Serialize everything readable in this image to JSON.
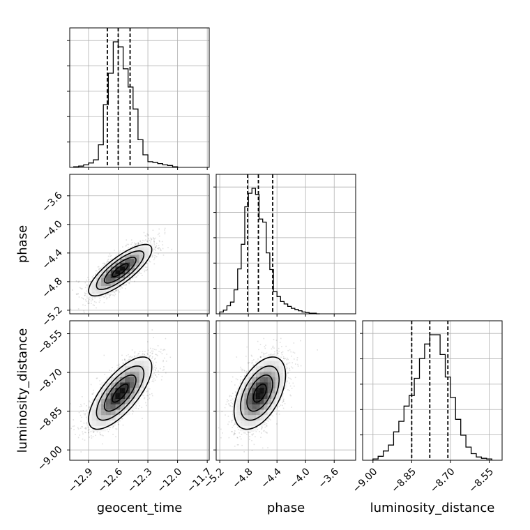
{
  "chart_data": {
    "type": "corner",
    "parameters": [
      "geocent_time",
      "phase",
      "luminosity_distance"
    ],
    "axis_titles": {
      "x": [
        "geocent_time",
        "phase",
        "luminosity_distance"
      ],
      "y": [
        "",
        "phase",
        "luminosity_distance"
      ]
    },
    "ticks": {
      "geocent_time": {
        "values": [
          -12.9,
          -12.6,
          -12.3,
          -12.0,
          -11.7
        ],
        "labels": [
          "−12.9",
          "−12.6",
          "−12.3",
          "−12.0",
          "−11.7"
        ]
      },
      "phase": {
        "values": [
          -5.2,
          -4.8,
          -4.4,
          -4.0,
          -3.6
        ],
        "labels": [
          "−5.2",
          "−4.8",
          "−4.4",
          "−4.0",
          "−3.6"
        ]
      },
      "luminosity_distance": {
        "values": [
          -9.0,
          -8.85,
          -8.7,
          -8.55
        ],
        "labels": [
          "−9.00",
          "−8.85",
          "−8.70",
          "−8.55"
        ]
      }
    },
    "ranges": {
      "geocent_time": [
        -13.09,
        -11.68
      ],
      "phase": [
        -5.25,
        -3.3
      ],
      "luminosity_distance": [
        -9.04,
        -8.5
      ]
    },
    "grid": true,
    "quantile_lines": {
      "geocent_time": [
        -12.71,
        -12.6,
        -12.48
      ],
      "phase": [
        -4.81,
        -4.66,
        -4.46
      ],
      "luminosity_distance": [
        -8.85,
        -8.78,
        -8.71
      ]
    },
    "histograms": {
      "geocent_time": {
        "bin_edges": [
          -13.05,
          -13.0,
          -12.95,
          -12.9,
          -12.85,
          -12.8,
          -12.75,
          -12.7,
          -12.65,
          -12.6,
          -12.55,
          -12.5,
          -12.45,
          -12.4,
          -12.35,
          -12.3,
          -12.25,
          -12.2,
          -12.15,
          -12.1,
          -12.05,
          -12.0
        ],
        "counts": [
          1,
          2,
          4,
          7,
          12,
          36,
          100,
          150,
          200,
          192,
          157,
          128,
          93,
          44,
          20,
          9,
          8,
          6,
          4,
          3,
          1
        ]
      },
      "phase": {
        "bin_edges": [
          -5.2,
          -5.15,
          -5.1,
          -5.05,
          -5.0,
          -4.95,
          -4.9,
          -4.85,
          -4.8,
          -4.75,
          -4.7,
          -4.65,
          -4.6,
          -4.55,
          -4.5,
          -4.45,
          -4.4,
          -4.35,
          -4.3,
          -4.25,
          -4.2,
          -4.15,
          -4.1,
          -4.05,
          -4.0,
          -3.95,
          -3.9,
          -3.85,
          -3.8
        ],
        "counts": [
          3,
          6,
          13,
          19,
          39,
          73,
          113,
          174,
          196,
          204,
          194,
          154,
          149,
          99,
          72,
          36,
          28,
          20,
          16,
          12,
          9,
          7,
          5,
          3,
          2,
          1,
          1,
          0
        ]
      },
      "luminosity_distance": {
        "bin_edges": [
          -9.0,
          -8.98,
          -8.96,
          -8.94,
          -8.92,
          -8.9,
          -8.88,
          -8.86,
          -8.84,
          -8.82,
          -8.8,
          -8.78,
          -8.76,
          -8.74,
          -8.72,
          -8.7,
          -8.68,
          -8.66,
          -8.64,
          -8.62,
          -8.6,
          -8.58,
          -8.56,
          -8.54
        ],
        "counts": [
          2,
          6,
          14,
          23,
          43,
          59,
          82,
          98,
          124,
          154,
          176,
          190,
          190,
          160,
          126,
          95,
          62,
          38,
          20,
          10,
          5,
          3,
          2
        ]
      }
    },
    "scatter_2d": [
      {
        "x": "geocent_time",
        "y": "phase",
        "mean": [
          -12.58,
          -4.64
        ],
        "sd": [
          0.16,
          0.18
        ],
        "rho": 0.8
      },
      {
        "x": "geocent_time",
        "y": "luminosity_distance",
        "mean": [
          -12.58,
          -8.78
        ],
        "sd": [
          0.16,
          0.07
        ],
        "rho": 0.72
      },
      {
        "x": "phase",
        "y": "luminosity_distance",
        "mean": [
          -4.64,
          -8.78
        ],
        "sd": [
          0.18,
          0.07
        ],
        "rho": 0.5
      }
    ]
  }
}
